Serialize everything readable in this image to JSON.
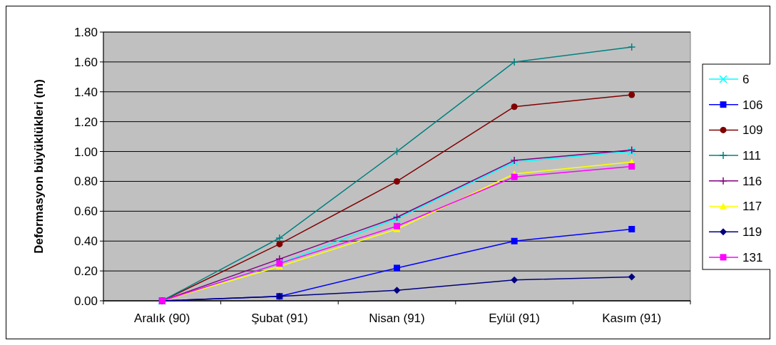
{
  "chart_data": {
    "type": "line",
    "ylabel": "Deformasyon büyüklükleri (m)",
    "categories": [
      "Aralık (90)",
      "Şubat (91)",
      "Nisan (91)",
      "Eylül (91)",
      "Kasım (91)"
    ],
    "ylim": [
      0,
      1.8
    ],
    "yticks": [
      {
        "value": 0,
        "label": "0.00"
      },
      {
        "value": 0.2,
        "label": "0.20"
      },
      {
        "value": 0.4,
        "label": "0.40"
      },
      {
        "value": 0.6,
        "label": "0.60"
      },
      {
        "value": 0.8,
        "label": "0.80"
      },
      {
        "value": 1,
        "label": "1.00"
      },
      {
        "value": 1.2,
        "label": "1.20"
      },
      {
        "value": 1.4,
        "label": "1.40"
      },
      {
        "value": 1.6,
        "label": "1.60"
      },
      {
        "value": 1.8,
        "label": "1.80"
      }
    ],
    "grid": "y",
    "legend": "right",
    "line_style": "solid",
    "series": [
      {
        "name": "6",
        "color": "#00ffff",
        "marker": "x",
        "values": [
          0,
          0.25,
          0.55,
          0.93,
          1.0
        ]
      },
      {
        "name": "106",
        "color": "#0000ff",
        "marker": "square",
        "values": [
          0,
          0.03,
          0.22,
          0.4,
          0.48
        ]
      },
      {
        "name": "109",
        "color": "#800000",
        "marker": "circle",
        "values": [
          0,
          0.38,
          0.8,
          1.3,
          1.38
        ]
      },
      {
        "name": "111",
        "color": "#008080",
        "marker": "cross",
        "values": [
          0,
          0.42,
          1.0,
          1.6,
          1.7
        ]
      },
      {
        "name": "116",
        "color": "#800080",
        "marker": "cross",
        "values": [
          0,
          0.28,
          0.56,
          0.94,
          1.01
        ]
      },
      {
        "name": "117",
        "color": "#ffff00",
        "marker": "triangle",
        "values": [
          0,
          0.23,
          0.48,
          0.85,
          0.93
        ]
      },
      {
        "name": "119",
        "color": "#000080",
        "marker": "diamond",
        "values": [
          0,
          0.03,
          0.07,
          0.14,
          0.16
        ]
      },
      {
        "name": "131",
        "color": "#ff00ff",
        "marker": "square",
        "values": [
          0,
          0.25,
          0.5,
          0.83,
          0.9
        ]
      }
    ]
  }
}
